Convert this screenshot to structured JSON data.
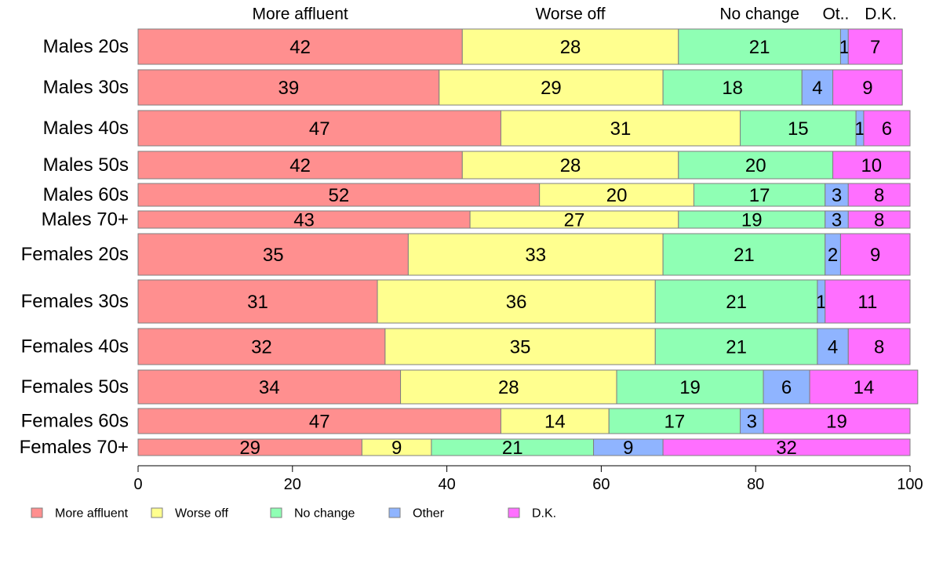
{
  "chart_data": {
    "type": "bar",
    "orientation": "horizontal",
    "stacked": true,
    "categories": [
      "Males 20s",
      "Males 30s",
      "Males 40s",
      "Males 50s",
      "Males 60s",
      "Males 70+",
      "Females 20s",
      "Females 30s",
      "Females 40s",
      "Females 50s",
      "Females 60s",
      "Females 70+"
    ],
    "series": [
      {
        "name": "More affluent",
        "color": "#FF8F8F",
        "values": [
          42,
          39,
          47,
          42,
          52,
          43,
          35,
          31,
          32,
          34,
          47,
          29
        ]
      },
      {
        "name": "Worse off",
        "color": "#FFFF8F",
        "values": [
          28,
          29,
          31,
          28,
          20,
          27,
          33,
          36,
          35,
          28,
          14,
          9
        ]
      },
      {
        "name": "No change",
        "color": "#8FFFB4",
        "values": [
          21,
          18,
          15,
          20,
          17,
          19,
          21,
          21,
          21,
          19,
          17,
          21
        ]
      },
      {
        "name": "Other",
        "color": "#8FB4FF",
        "values": [
          1,
          4,
          1,
          0,
          3,
          3,
          2,
          1,
          4,
          6,
          3,
          9
        ]
      },
      {
        "name": "D.K.",
        "color": "#FF6FFF",
        "values": [
          7,
          9,
          6,
          10,
          8,
          8,
          9,
          11,
          8,
          14,
          19,
          32
        ]
      }
    ],
    "top_labels": [
      "More affluent",
      "Worse off",
      "No change",
      "Ot..",
      "D.K."
    ],
    "xlim": [
      0,
      100
    ],
    "xticks": [
      "0",
      "20",
      "40",
      "60",
      "80",
      "100"
    ],
    "legend": {
      "position": "bottom-left",
      "labels": [
        "More affluent",
        "Worse off",
        "No change",
        "Other",
        "D.K."
      ]
    },
    "grid": false,
    "title": "",
    "xlabel": "",
    "ylabel": ""
  }
}
